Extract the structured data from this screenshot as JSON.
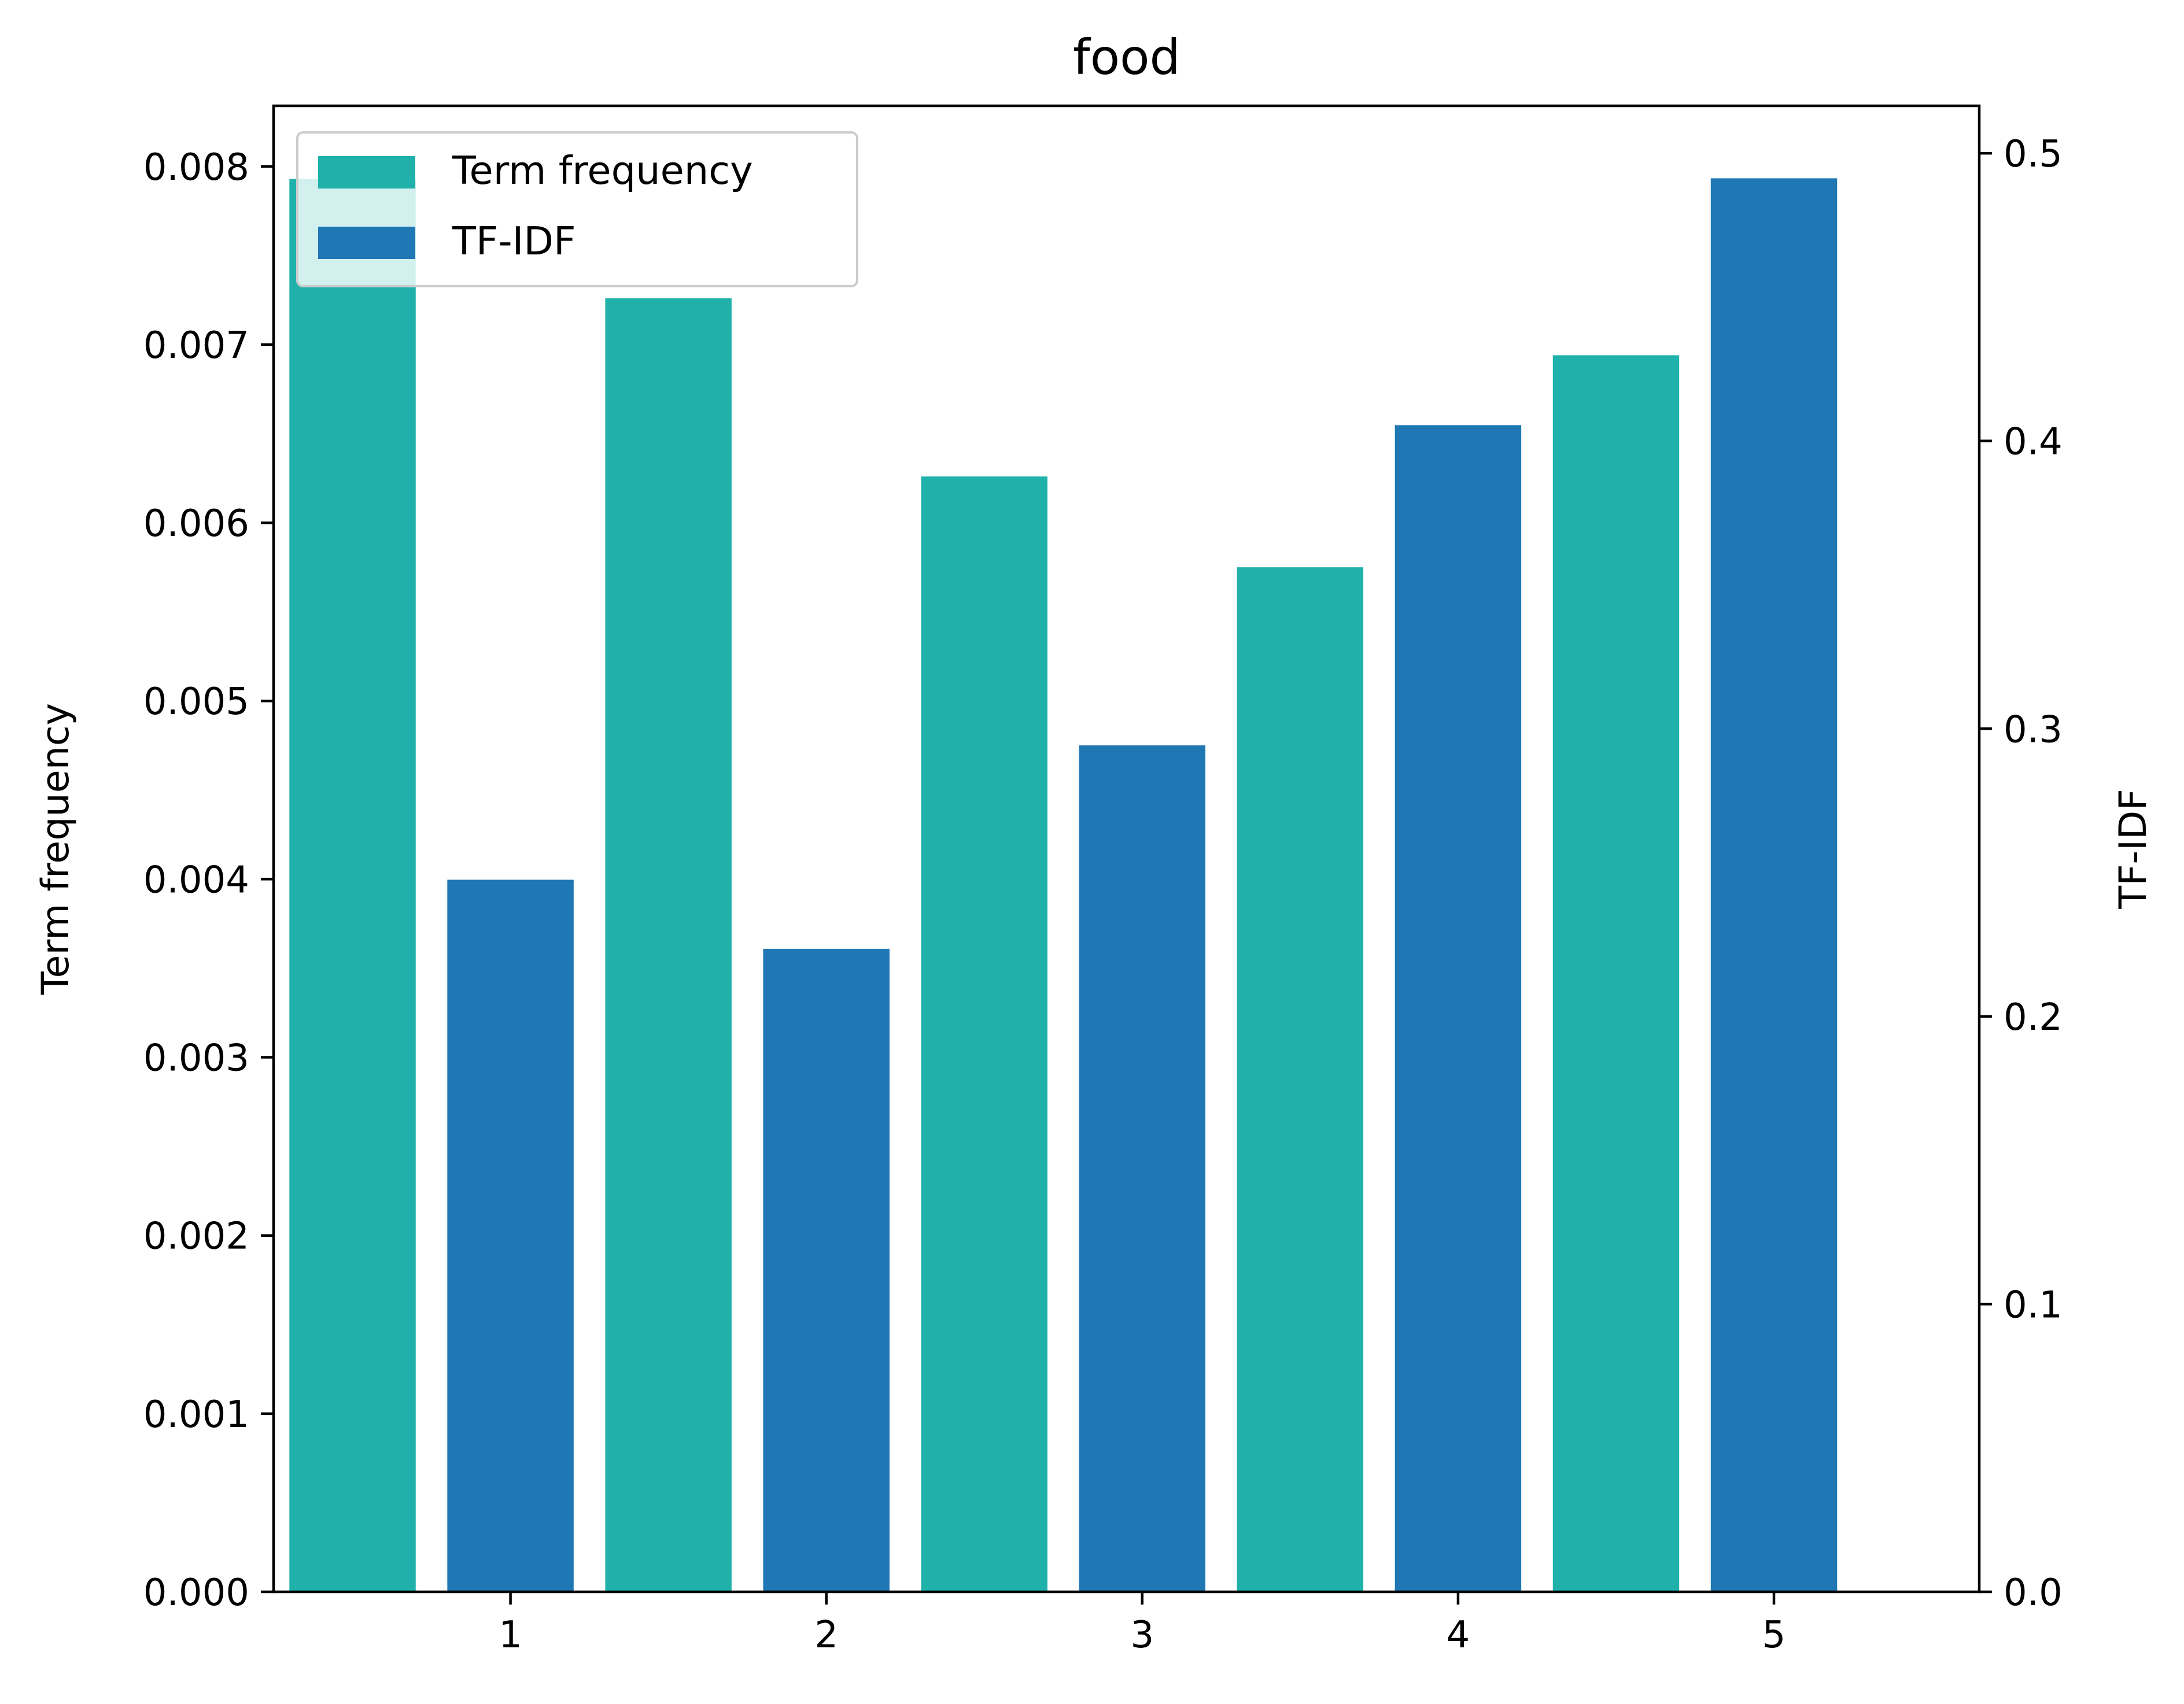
{
  "chart_data": {
    "type": "bar",
    "title": "food",
    "xlabel": "",
    "ylabel_left": "Term frequency",
    "ylabel_right": "TF-IDF",
    "categories": [
      1,
      2,
      3,
      4,
      5
    ],
    "x_ticks": [
      "1",
      "2",
      "3",
      "4",
      "5"
    ],
    "xlim": [
      0.25,
      5.65
    ],
    "ylim_left": [
      0,
      0.00834
    ],
    "ylim_right": [
      0,
      0.5165
    ],
    "yticks_left": [
      "0.000",
      "0.001",
      "0.002",
      "0.003",
      "0.004",
      "0.005",
      "0.006",
      "0.007",
      "0.008"
    ],
    "yticks_right": [
      "0.0",
      "0.1",
      "0.2",
      "0.3",
      "0.4",
      "0.5"
    ],
    "series": [
      {
        "name": "Term frequency",
        "axis": "left",
        "color": "#20b2aa",
        "values": [
          0.00793,
          0.00726,
          0.00626,
          0.00575,
          0.00694
        ]
      },
      {
        "name": "TF-IDF",
        "axis": "right",
        "color": "#1f77b4",
        "values": [
          0.2475,
          0.2235,
          0.2942,
          0.4055,
          0.4913
        ]
      }
    ],
    "grid": false,
    "legend": {
      "position": "top-left",
      "entries": [
        "Term frequency",
        "TF-IDF"
      ]
    }
  }
}
